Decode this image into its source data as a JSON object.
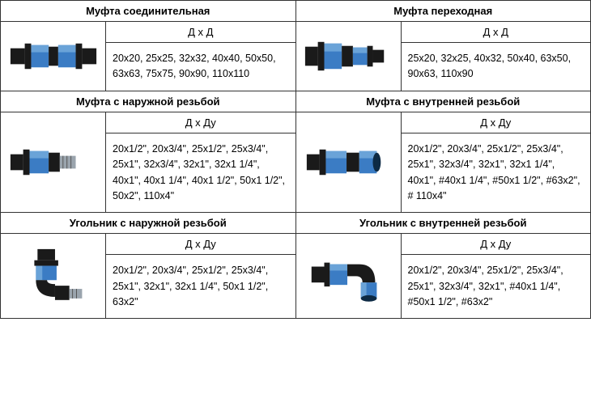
{
  "colors": {
    "border": "#333333",
    "text": "#222222",
    "fitting_blue": "#3b7cc4",
    "fitting_blue_light": "#6aa3d8",
    "fitting_black": "#1a1a1a",
    "fitting_grey": "#9aa4ad",
    "bg": "#ffffff"
  },
  "typography": {
    "family": "Arial, sans-serif",
    "title_size": 13,
    "body_size": 12.5
  },
  "products": [
    {
      "title": "Муфта соединительная",
      "dim_label": "Д х Д",
      "sizes": "20х20, 25х25, 32х32, 40х40, 50х50, 63х63, 75х75, 90х90, 110х110",
      "shape": "coupling"
    },
    {
      "title": "Муфта переходная",
      "dim_label": "Д х Д",
      "sizes": "25х20, 32х25, 40х32, 50х40, 63х50, 90х63, 110х90",
      "shape": "reducer"
    },
    {
      "title": "Муфта с наружной резьбой",
      "dim_label": "Д х Ду",
      "sizes": "20х1/2\", 20х3/4\", 25х1/2\", 25х3/4\", 25х1\", 32х3/4\", 32х1\", 32х1 1/4\", 40х1\", 40х1 1/4\", 40х1 1/2\", 50х1 1/2\", 50х2\", 110х4\"",
      "shape": "male"
    },
    {
      "title": "Муфта с внутренней резьбой",
      "dim_label": "Д х Ду",
      "sizes": "20х1/2\", 20х3/4\", 25х1/2\", 25х3/4\", 25х1\", 32х3/4\",  32х1\", 32х1 1/4\", 40х1\",  #40х1 1/4\",  #50х1 1/2\", #63х2\",  # 110х4\"",
      "shape": "female"
    },
    {
      "title": "Угольник с наружной резьбой",
      "dim_label": "Д х Ду",
      "sizes": "20х1/2\", 20х3/4\", 25х1/2\", 25х3/4\", 25х1\",  32х1\", 32х1 1/4\", 50х1 1/2\", 63х2\"",
      "shape": "elbow_male"
    },
    {
      "title": "Угольник с внутренней резьбой",
      "dim_label": "Д х Ду",
      "sizes": "20х1/2\", 20х3/4\", 25х1/2\", 25х3/4\", 25х1\",  32х3/4\",  32х1\",  #40х1 1/4\", #50х1 1/2\",  #63х2\"",
      "shape": "elbow_female"
    }
  ]
}
